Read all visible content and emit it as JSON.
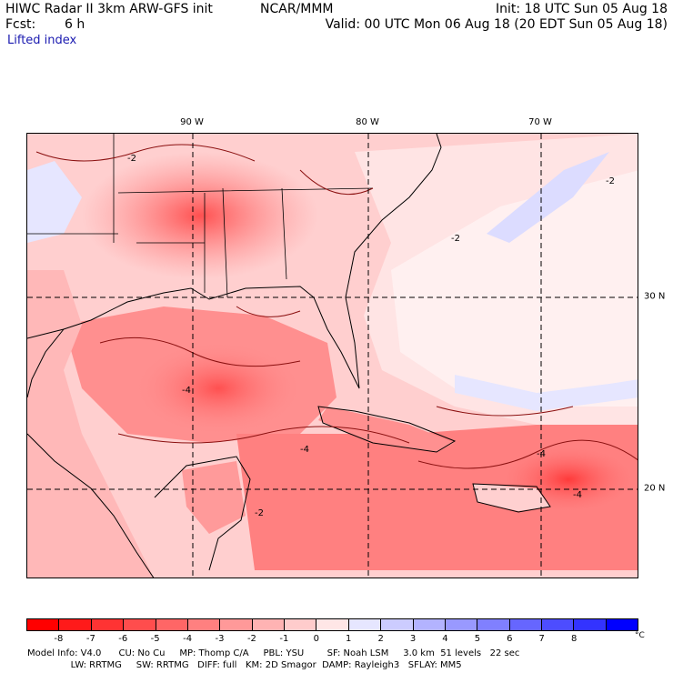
{
  "header": {
    "title": "HIWC Radar II 3km ARW-GFS init",
    "org": "NCAR/MMM",
    "fcst_label": "Fcst:",
    "fcst_value": "6 h",
    "init": "Init: 18 UTC Sun 05 Aug 18",
    "valid": "Valid: 00 UTC Mon 06 Aug 18 (20 EDT Sun 05 Aug 18)",
    "field": "Lifted index"
  },
  "map": {
    "lon_labels": [
      "90 W",
      "80 W",
      "70 W"
    ],
    "lat_labels": [
      "30 N",
      "20 N"
    ],
    "contour_labels": [
      "-2",
      "-2",
      "-2",
      "-4",
      "-4",
      "-4",
      "-4",
      "-2"
    ]
  },
  "colorbar": {
    "labels": [
      "-8",
      "-7",
      "-6",
      "-5",
      "-4",
      "-3",
      "-2",
      "-1",
      "0",
      "1",
      "2",
      "3",
      "4",
      "5",
      "6",
      "7",
      "8"
    ],
    "unit": "°C",
    "colors": [
      "#ff0000",
      "#ff1a1a",
      "#ff3333",
      "#ff4d4d",
      "#ff6666",
      "#ff8080",
      "#ff9999",
      "#ffb3b3",
      "#ffcccc",
      "#ffe6e6",
      "#e6e6ff",
      "#ccccff",
      "#b3b3ff",
      "#9999ff",
      "#8080ff",
      "#6666ff",
      "#4d4dff",
      "#3333ff",
      "#0000ff"
    ]
  },
  "footer": {
    "line1": "Model Info: V4.0      CU: No Cu     MP: Thomp C/A     PBL: YSU        SF: Noah LSM     3.0 km  51 levels   22 sec",
    "line2": "               LW: RRTMG     SW: RRTMG   DIFF: full   KM: 2D Smagor  DAMP: Rayleigh3   SFLAY: MM5"
  }
}
